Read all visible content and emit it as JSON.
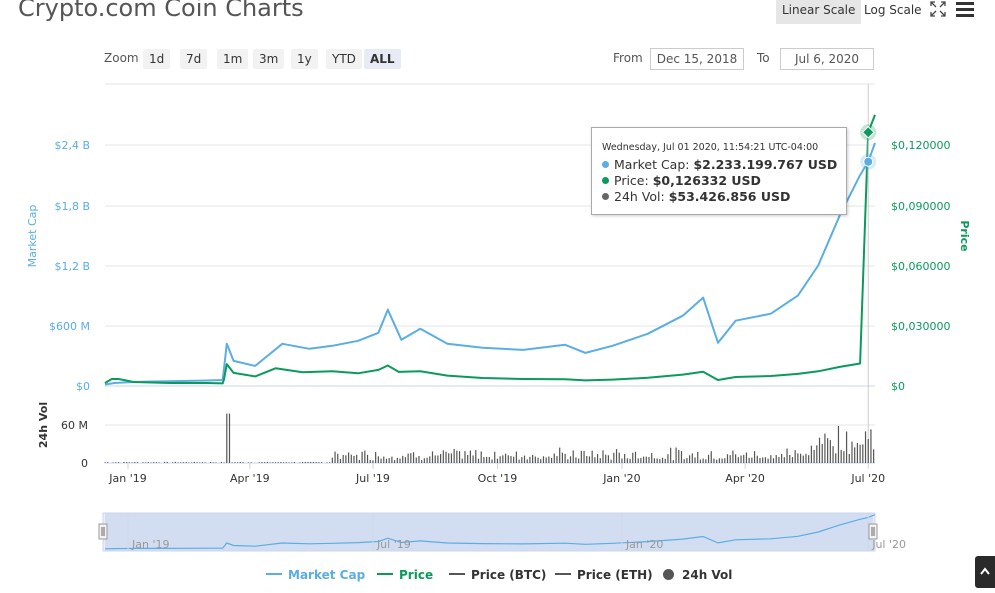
{
  "title": "Crypto.com Coin Charts",
  "scale_buttons": {
    "linear": "Linear Scale",
    "log": "Log Scale",
    "active": "linear"
  },
  "icons": {
    "fullscreen": "fullscreen-icon",
    "menu": "menu-icon",
    "scroll_top": "scroll-top-icon"
  },
  "zoom": {
    "label": "Zoom",
    "buttons": [
      "1d",
      "7d",
      "1m",
      "3m",
      "1y",
      "YTD",
      "ALL"
    ],
    "active": "ALL"
  },
  "range": {
    "from_label": "From",
    "from_value": "Dec 15, 2018",
    "to_label": "To",
    "to_value": "Jul 6, 2020"
  },
  "tooltip": {
    "date": "Wednesday, Jul 01 2020, 11:54:21 UTC-04:00",
    "market_cap_label": "Market Cap:",
    "market_cap_value": "$2.233.199.767 USD",
    "price_label": "Price:",
    "price_value": "$0,126332 USD",
    "vol_label": "24h Vol:",
    "vol_value": "$53.426.856 USD"
  },
  "colors": {
    "market_cap": "#5aaee3",
    "price": "#0b9a5c",
    "volume": "#666666",
    "btc": "#555555",
    "eth": "#555555",
    "navigator_fill": "#c9d6ee"
  },
  "legend": [
    {
      "label": "Market Cap",
      "type": "line",
      "color": "#5aaee3"
    },
    {
      "label": "Price",
      "type": "line",
      "color": "#0b9a5c"
    },
    {
      "label": "Price (BTC)",
      "type": "line",
      "color": "#555555"
    },
    {
      "label": "Price (ETH)",
      "type": "line",
      "color": "#555555"
    },
    {
      "label": "24h Vol",
      "type": "circle",
      "color": "#555555"
    }
  ],
  "chart_data": {
    "type": "line",
    "x_range": [
      "2018-12-15",
      "2020-07-06"
    ],
    "x_ticks": [
      "Jan '19",
      "Apr '19",
      "Jul '19",
      "Oct '19",
      "Jan '20",
      "Apr '20",
      "Jul '20"
    ],
    "navigator_ticks": [
      "Jan '19",
      "Jul '19",
      "Jan '20",
      "Jul '20"
    ],
    "market_cap_axis": {
      "label": "Market Cap",
      "ticks": [
        "$0",
        "$600 M",
        "$1,2 B",
        "$1,8 B",
        "$2,4 B"
      ],
      "ylim": [
        0,
        2400000000
      ]
    },
    "price_axis": {
      "label": "Price",
      "ticks": [
        "$0",
        "$0,030000",
        "$0,060000",
        "$0,090000",
        "$0,120000"
      ],
      "ylim": [
        0,
        0.12
      ]
    },
    "volume_axis": {
      "label": "24h Vol",
      "ticks": [
        "0",
        "60 M"
      ],
      "ylim": [
        0,
        60000000
      ]
    },
    "grid": true,
    "series": [
      {
        "name": "Market Cap",
        "axis": "market_cap",
        "points": [
          [
            "2018-12-15",
            15000000
          ],
          [
            "2018-12-22",
            30000000
          ],
          [
            "2019-01-05",
            40000000
          ],
          [
            "2019-01-20",
            45000000
          ],
          [
            "2019-02-10",
            50000000
          ],
          [
            "2019-03-01",
            55000000
          ],
          [
            "2019-03-12",
            60000000
          ],
          [
            "2019-03-15",
            420000000
          ],
          [
            "2019-03-20",
            250000000
          ],
          [
            "2019-04-05",
            200000000
          ],
          [
            "2019-04-25",
            420000000
          ],
          [
            "2019-05-15",
            370000000
          ],
          [
            "2019-06-01",
            400000000
          ],
          [
            "2019-06-20",
            450000000
          ],
          [
            "2019-07-05",
            530000000
          ],
          [
            "2019-07-12",
            760000000
          ],
          [
            "2019-07-22",
            460000000
          ],
          [
            "2019-08-05",
            570000000
          ],
          [
            "2019-08-25",
            420000000
          ],
          [
            "2019-09-20",
            380000000
          ],
          [
            "2019-10-20",
            360000000
          ],
          [
            "2019-11-20",
            410000000
          ],
          [
            "2019-12-05",
            330000000
          ],
          [
            "2019-12-25",
            400000000
          ],
          [
            "2020-01-20",
            520000000
          ],
          [
            "2020-02-15",
            700000000
          ],
          [
            "2020-03-01",
            880000000
          ],
          [
            "2020-03-12",
            430000000
          ],
          [
            "2020-03-25",
            650000000
          ],
          [
            "2020-04-20",
            720000000
          ],
          [
            "2020-05-10",
            900000000
          ],
          [
            "2020-05-25",
            1200000000
          ],
          [
            "2020-06-10",
            1700000000
          ],
          [
            "2020-06-25",
            2100000000
          ],
          [
            "2020-07-01",
            2233199767
          ],
          [
            "2020-07-06",
            2420000000
          ]
        ]
      },
      {
        "name": "Price",
        "axis": "price",
        "points": [
          [
            "2018-12-15",
            0.0015
          ],
          [
            "2018-12-20",
            0.0035
          ],
          [
            "2018-12-22",
            0.0035
          ],
          [
            "2018-12-25",
            0.0035
          ],
          [
            "2018-12-29",
            0.003
          ],
          [
            "2019-01-05",
            0.002
          ],
          [
            "2019-02-01",
            0.0015
          ],
          [
            "2019-03-01",
            0.0015
          ],
          [
            "2019-03-12",
            0.0013
          ],
          [
            "2019-03-13",
            0.0035
          ],
          [
            "2019-03-15",
            0.0109
          ],
          [
            "2019-03-20",
            0.0065
          ],
          [
            "2019-04-05",
            0.0048
          ],
          [
            "2019-04-20",
            0.0088
          ],
          [
            "2019-05-10",
            0.0068
          ],
          [
            "2019-06-01",
            0.0073
          ],
          [
            "2019-06-20",
            0.0063
          ],
          [
            "2019-07-05",
            0.008
          ],
          [
            "2019-07-12",
            0.0102
          ],
          [
            "2019-07-20",
            0.007
          ],
          [
            "2019-08-05",
            0.0073
          ],
          [
            "2019-08-25",
            0.0052
          ],
          [
            "2019-09-20",
            0.004
          ],
          [
            "2019-10-20",
            0.0035
          ],
          [
            "2019-11-20",
            0.0034
          ],
          [
            "2019-12-05",
            0.0028
          ],
          [
            "2019-12-25",
            0.0032
          ],
          [
            "2020-01-20",
            0.0041
          ],
          [
            "2020-02-15",
            0.0057
          ],
          [
            "2020-03-01",
            0.0071
          ],
          [
            "2020-03-12",
            0.003
          ],
          [
            "2020-03-25",
            0.0045
          ],
          [
            "2020-04-20",
            0.005
          ],
          [
            "2020-05-10",
            0.006
          ],
          [
            "2020-05-25",
            0.0073
          ],
          [
            "2020-06-10",
            0.0095
          ],
          [
            "2020-06-25",
            0.0112
          ],
          [
            "2020-07-01",
            0.126332
          ],
          [
            "2020-07-06",
            0.135
          ]
        ]
      }
    ],
    "volume_series": {
      "name": "24h Vol",
      "type": "bar",
      "axis": "volume"
    }
  }
}
